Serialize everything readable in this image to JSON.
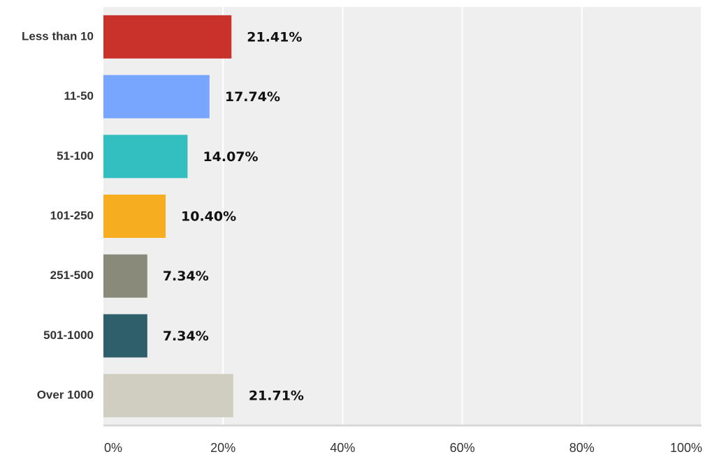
{
  "chart_data": {
    "type": "bar",
    "orientation": "horizontal",
    "categories": [
      "Less than 10",
      "11-50",
      "51-100",
      "101-250",
      "251-500",
      "501-1000",
      "Over 1000"
    ],
    "values": [
      21.41,
      17.74,
      14.07,
      10.4,
      7.34,
      7.34,
      21.71
    ],
    "value_labels": [
      "21.41%",
      "17.74%",
      "14.07%",
      "10.40%",
      "7.34%",
      "7.34%",
      "21.71%"
    ],
    "colors": [
      "#c8322b",
      "#78a6fe",
      "#33bfbf",
      "#f6ad1f",
      "#8a8a7a",
      "#2f5f6b",
      "#cfcec0"
    ],
    "xlim": [
      0,
      100
    ],
    "xticks": [
      0,
      20,
      40,
      60,
      80,
      100
    ],
    "xtick_labels": [
      "0%",
      "20%",
      "40%",
      "60%",
      "80%",
      "100%"
    ],
    "grid": true,
    "legend": "none",
    "plot_background": "#efefef"
  }
}
